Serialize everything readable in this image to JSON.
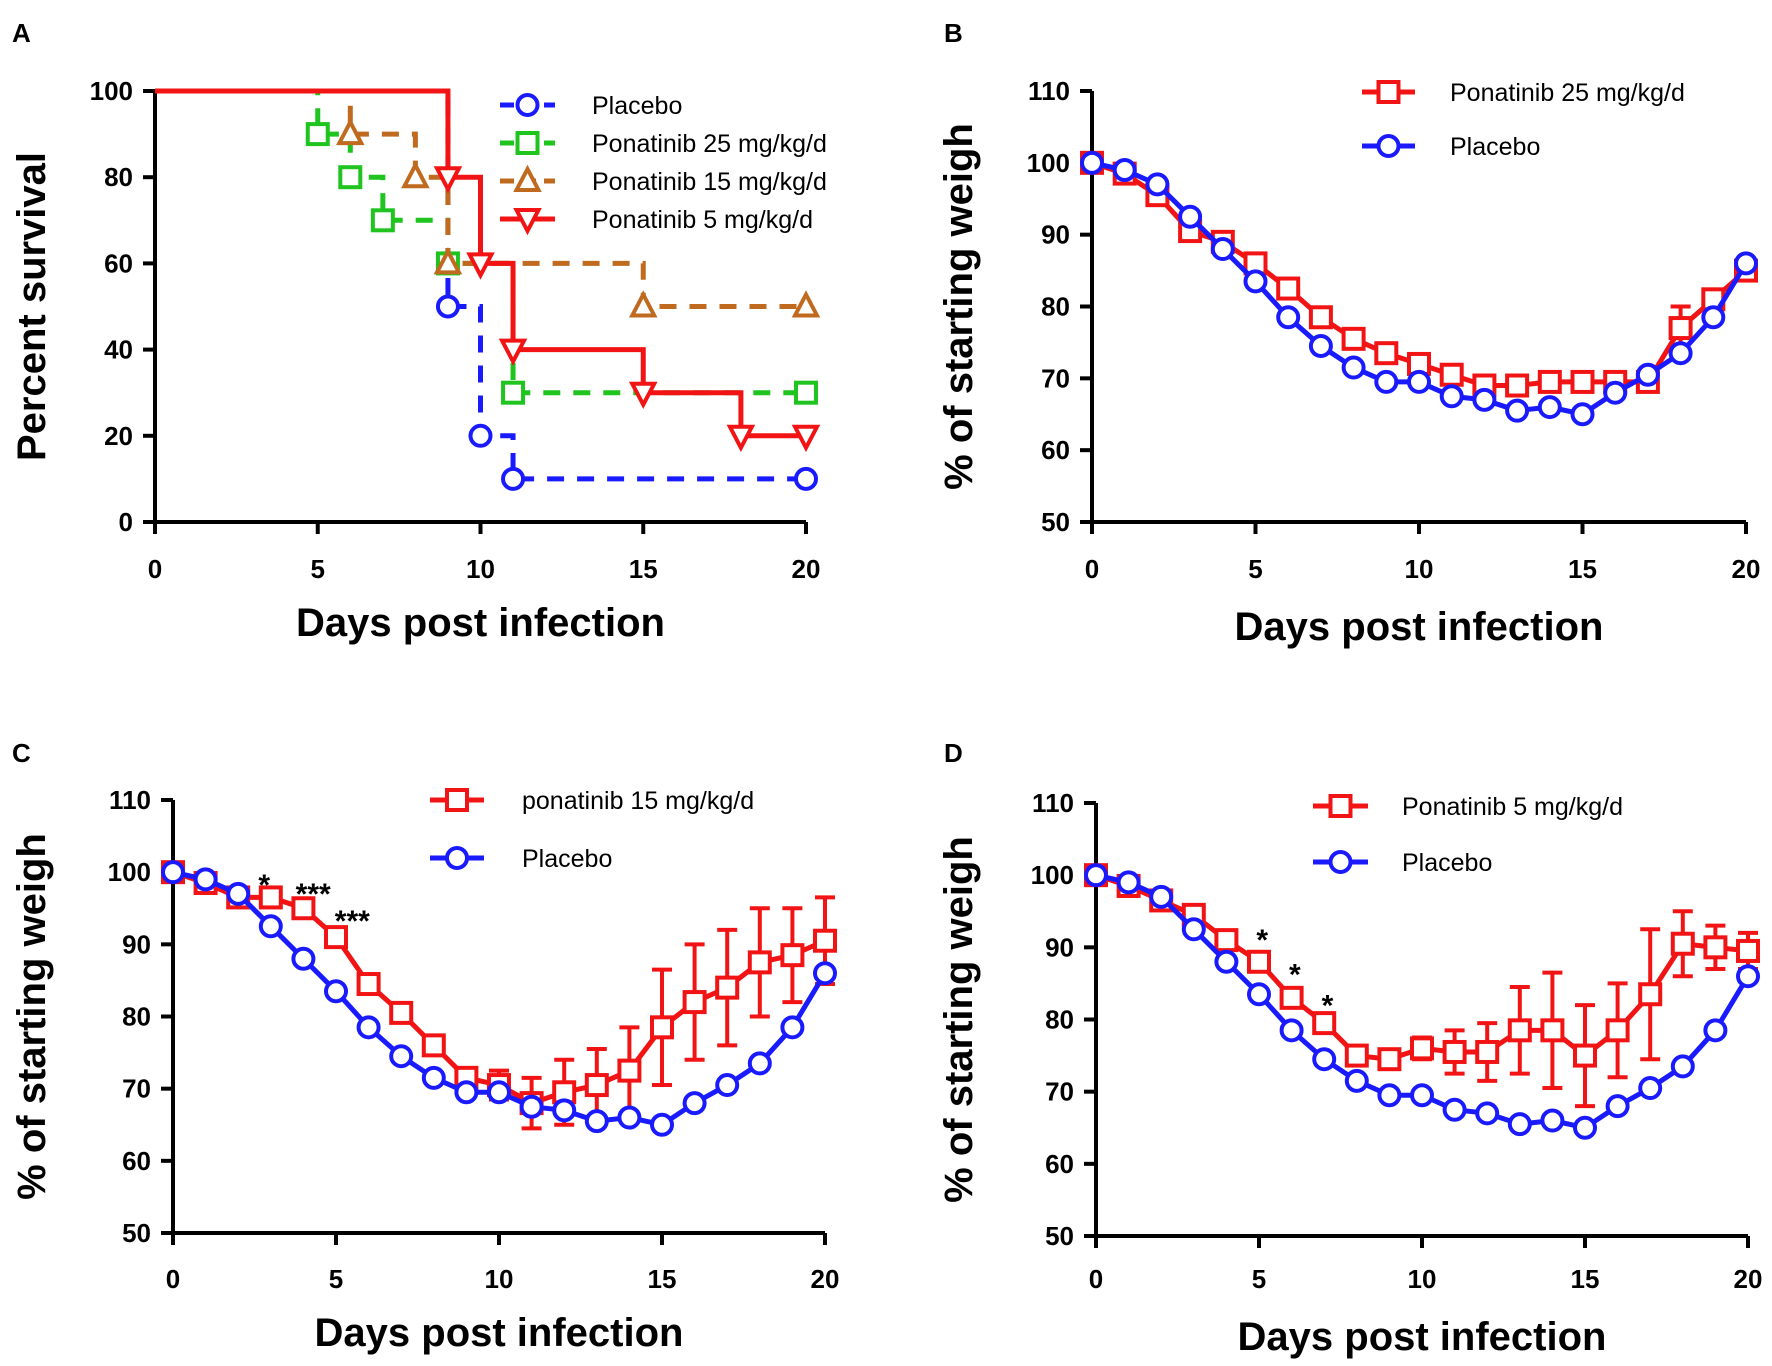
{
  "colors": {
    "placebo": "#1a1aff",
    "p25": "#1fc41f",
    "p15": "#c06a1f",
    "p5": "#f21414",
    "red": "#f21414",
    "blue": "#1a1aff",
    "axis": "#000000"
  },
  "chart_data": [
    {
      "id": "A",
      "panel_label": "A",
      "type": "line",
      "step": true,
      "xlabel": "Days post infection",
      "ylabel": "Percent survival",
      "xlim": [
        0,
        20
      ],
      "ylim": [
        0,
        100
      ],
      "xticks": [
        0,
        5,
        10,
        15,
        20
      ],
      "yticks": [
        0,
        20,
        40,
        60,
        80,
        100
      ],
      "legend_position": "top-right",
      "series": [
        {
          "name": "Placebo",
          "color_key": "placebo",
          "marker": "circle",
          "dash": true,
          "x": [
            0,
            9,
            10,
            11,
            20
          ],
          "y": [
            100,
            50,
            20,
            10,
            10
          ]
        },
        {
          "name": "Ponatinib 25 mg/kg/d",
          "color_key": "p25",
          "marker": "square",
          "dash": true,
          "x": [
            0,
            5,
            6,
            7,
            9,
            11,
            20
          ],
          "y": [
            100,
            90,
            80,
            70,
            60,
            30,
            30
          ]
        },
        {
          "name": "Ponatinib 15 mg/kg/d",
          "color_key": "p15",
          "marker": "triangle-up",
          "dash": true,
          "x": [
            0,
            6,
            8,
            9,
            15,
            20
          ],
          "y": [
            100,
            90,
            80,
            60,
            50,
            50
          ]
        },
        {
          "name": "Ponatinib 5 mg/kg/d",
          "color_key": "p5",
          "marker": "triangle-down",
          "dash": false,
          "x": [
            0,
            9,
            10,
            11,
            15,
            18,
            20
          ],
          "y": [
            100,
            80,
            60,
            40,
            30,
            20,
            20
          ]
        }
      ]
    },
    {
      "id": "B",
      "panel_label": "B",
      "type": "line",
      "xlabel": "Days post infection",
      "ylabel": "% of starting weigh",
      "xlim": [
        0,
        20
      ],
      "ylim": [
        50,
        110
      ],
      "xticks": [
        0,
        5,
        10,
        15,
        20
      ],
      "yticks": [
        50,
        60,
        70,
        80,
        90,
        100,
        110
      ],
      "legend_position": "top-right",
      "x": [
        0,
        1,
        2,
        3,
        4,
        5,
        6,
        7,
        8,
        9,
        10,
        11,
        12,
        13,
        14,
        15,
        16,
        17,
        18,
        19,
        20
      ],
      "series": [
        {
          "name": "Ponatinib 25 mg/kg/d",
          "color_key": "red",
          "marker": "square",
          "values": [
            100,
            98.5,
            95.5,
            90.5,
            89,
            86,
            82.5,
            78.5,
            75.5,
            73.5,
            72,
            70.5,
            69,
            69,
            69.5,
            69.5,
            69.5,
            69.5,
            77,
            81,
            85
          ],
          "err": [
            0,
            0,
            0,
            0,
            0,
            0,
            0,
            0,
            0,
            0,
            0,
            0,
            0,
            0,
            0,
            0,
            0,
            0,
            3,
            0,
            0
          ]
        },
        {
          "name": "Placebo",
          "color_key": "blue",
          "marker": "circle",
          "values": [
            100,
            99,
            97,
            92.5,
            88,
            83.5,
            78.5,
            74.5,
            71.5,
            69.5,
            69.5,
            67.5,
            67,
            65.5,
            66,
            65,
            68,
            70.5,
            73.5,
            78.5,
            86
          ],
          "err": [
            0,
            0,
            0,
            0,
            0,
            0,
            0,
            0,
            0,
            0,
            0,
            0,
            0,
            0,
            0,
            0,
            0,
            0,
            0,
            0,
            0
          ]
        }
      ]
    },
    {
      "id": "C",
      "panel_label": "C",
      "type": "line",
      "xlabel": "Days post infection",
      "ylabel": "% of starting weigh",
      "xlim": [
        0,
        20
      ],
      "ylim": [
        50,
        110
      ],
      "xticks": [
        0,
        5,
        10,
        15,
        20
      ],
      "yticks": [
        50,
        60,
        70,
        80,
        90,
        100,
        110
      ],
      "legend_position": "top-right",
      "x": [
        0,
        1,
        2,
        3,
        4,
        5,
        6,
        7,
        8,
        9,
        10,
        11,
        12,
        13,
        14,
        15,
        16,
        17,
        18,
        19,
        20
      ],
      "series": [
        {
          "name": "ponatinib 15 mg/kg/d",
          "color_key": "red",
          "marker": "square",
          "values": [
            100,
            98.5,
            96.5,
            96.5,
            95,
            91,
            84.5,
            80.5,
            76,
            71.5,
            70.5,
            68,
            69.5,
            70.5,
            72.5,
            78.5,
            82,
            84,
            87.5,
            88.5,
            90.5
          ],
          "err": [
            0,
            0,
            0,
            0,
            0,
            0,
            0,
            0,
            0,
            0,
            2,
            3.5,
            4.5,
            5,
            6,
            8,
            8,
            8,
            7.5,
            6.5,
            6
          ]
        },
        {
          "name": "Placebo",
          "color_key": "blue",
          "marker": "circle",
          "values": [
            100,
            99,
            97,
            92.5,
            88,
            83.5,
            78.5,
            74.5,
            71.5,
            69.5,
            69.5,
            67.5,
            67,
            65.5,
            66,
            65,
            68,
            70.5,
            73.5,
            78.5,
            86
          ],
          "err": [
            0,
            0,
            0,
            0,
            0,
            0,
            0,
            0,
            0,
            0,
            0,
            0,
            0,
            0,
            0,
            0,
            0,
            0,
            0,
            0,
            0
          ]
        }
      ],
      "annotations": [
        {
          "text": "*",
          "x": 2.8,
          "y": 98.8
        },
        {
          "text": "***",
          "x": 4.3,
          "y": 97.5
        },
        {
          "text": "***",
          "x": 5.5,
          "y": 93.8
        }
      ]
    },
    {
      "id": "D",
      "panel_label": "D",
      "type": "line",
      "xlabel": "Days post infection",
      "ylabel": "% of starting weigh",
      "xlim": [
        0,
        20
      ],
      "ylim": [
        50,
        110
      ],
      "xticks": [
        0,
        5,
        10,
        15,
        20
      ],
      "yticks": [
        50,
        60,
        70,
        80,
        90,
        100,
        110
      ],
      "legend_position": "top-right",
      "x": [
        0,
        1,
        2,
        3,
        4,
        5,
        6,
        7,
        8,
        9,
        10,
        11,
        12,
        13,
        14,
        15,
        16,
        17,
        18,
        19,
        20
      ],
      "series": [
        {
          "name": "Ponatinib 5 mg/kg/d",
          "color_key": "red",
          "marker": "square",
          "values": [
            100,
            98.5,
            96.5,
            94.5,
            91,
            88,
            83,
            79.5,
            75,
            74.5,
            76,
            75.5,
            75.5,
            78.5,
            78.5,
            75,
            78.5,
            83.5,
            90.5,
            90,
            89.5
          ],
          "err": [
            0,
            0,
            0,
            0,
            0,
            0,
            0,
            0,
            0,
            0,
            1.5,
            3,
            4,
            6,
            8,
            7,
            6.5,
            9,
            4.5,
            3,
            2.5
          ]
        },
        {
          "name": "Placebo",
          "color_key": "blue",
          "marker": "circle",
          "values": [
            100,
            99,
            97,
            92.5,
            88,
            83.5,
            78.5,
            74.5,
            71.5,
            69.5,
            69.5,
            67.5,
            67,
            65.5,
            66,
            65,
            68,
            70.5,
            73.5,
            78.5,
            86
          ],
          "err": [
            0,
            0,
            0,
            0,
            0,
            0,
            0,
            0,
            0,
            0,
            0,
            0,
            0,
            0,
            0,
            0,
            0,
            0,
            0,
            0,
            0
          ]
        }
      ],
      "annotations": [
        {
          "text": "*",
          "x": 5.1,
          "y": 91.6
        },
        {
          "text": "*",
          "x": 6.1,
          "y": 86.8
        },
        {
          "text": "*",
          "x": 7.1,
          "y": 82.5
        }
      ]
    }
  ]
}
